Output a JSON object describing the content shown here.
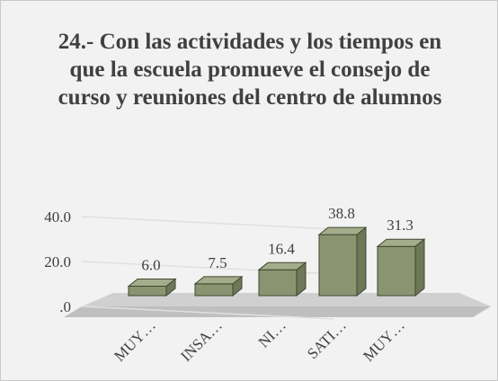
{
  "chart_data": {
    "type": "bar3d",
    "title": "24.- Con las actividades y los tiempos en que la escuela promueve el consejo de curso y reuniones del centro de alumnos",
    "categories": [
      "MUY…",
      "INSA…",
      "NI…",
      "SATI…",
      "MUY…"
    ],
    "values": [
      6.0,
      7.5,
      16.4,
      38.8,
      31.3
    ],
    "value_labels": [
      "6.0",
      "7.5",
      "16.4",
      "38.8",
      "31.3"
    ],
    "color": "#8a9470",
    "ylim": [
      0,
      40
    ],
    "yticks": [
      {
        "value": 0,
        "label": ".0"
      },
      {
        "value": 20,
        "label": "20.0"
      },
      {
        "value": 40,
        "label": "40.0"
      }
    ],
    "grid": true
  }
}
